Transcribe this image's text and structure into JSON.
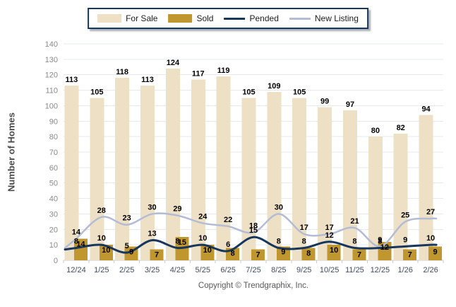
{
  "legend": {
    "items": [
      {
        "label": "For Sale",
        "swatch": "bar",
        "color": "#EDE0C5"
      },
      {
        "label": "Sold",
        "swatch": "bar",
        "color": "#C0962F"
      },
      {
        "label": "Pended",
        "swatch": "line",
        "color": "#16365C"
      },
      {
        "label": "New Listing",
        "swatch": "line",
        "color": "#B3BCD4"
      }
    ]
  },
  "footer": {
    "copyright": "Copyright © Trendgraphix, Inc."
  },
  "chart_data": {
    "type": "bar+line",
    "categories": [
      "12/24",
      "1/25",
      "2/25",
      "3/25",
      "4/25",
      "5/25",
      "6/25",
      "7/25",
      "8/25",
      "9/25",
      "10/25",
      "11/25",
      "12/25",
      "1/26",
      "2/26"
    ],
    "series": [
      {
        "name": "For Sale",
        "type": "bar",
        "color": "#EDE0C5",
        "values": [
          113,
          105,
          118,
          113,
          124,
          117,
          119,
          105,
          109,
          105,
          99,
          97,
          80,
          82,
          94
        ]
      },
      {
        "name": "Sold",
        "type": "bar",
        "color": "#C0962F",
        "values": [
          14,
          10,
          9,
          7,
          15,
          10,
          8,
          7,
          9,
          8,
          10,
          7,
          12,
          7,
          9
        ]
      },
      {
        "name": "Pended",
        "type": "line",
        "color": "#16365C",
        "values": [
          8,
          10,
          5,
          13,
          8,
          10,
          6,
          15,
          8,
          8,
          12,
          8,
          8,
          9,
          10
        ]
      },
      {
        "name": "New Listing",
        "type": "line",
        "color": "#B3BCD4",
        "values": [
          14,
          28,
          23,
          30,
          29,
          24,
          22,
          18,
          30,
          17,
          17,
          21,
          9,
          25,
          27
        ]
      }
    ],
    "xlabel": "",
    "ylabel": "Number of Homes",
    "ylim": [
      0,
      140
    ],
    "ytick_step": 10,
    "grid": true,
    "legend_position": "top"
  }
}
